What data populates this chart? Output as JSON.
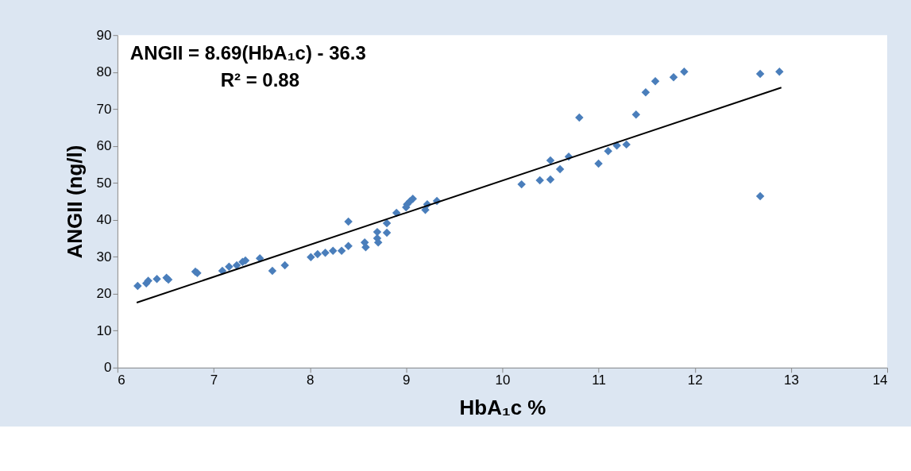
{
  "chart_data": {
    "type": "scatter",
    "xlabel": "HbA₁c %",
    "ylabel": "ANGII (ng/l)",
    "xlim": [
      6,
      14
    ],
    "xticks": [
      6,
      7,
      8,
      9,
      10,
      11,
      12,
      13,
      14
    ],
    "ylim": [
      0,
      90
    ],
    "yticks": [
      0,
      10,
      20,
      30,
      40,
      50,
      60,
      70,
      80,
      90
    ],
    "grid": false,
    "marker": "diamond",
    "annotations": [
      "ANGII = 8.69(HbA₁c) - 36.3",
      "R² = 0.88"
    ],
    "series": [
      {
        "color": "#4a7ebb",
        "x": [
          6.21,
          6.3,
          6.32,
          6.41,
          6.51,
          6.53,
          6.81,
          6.83,
          7.09,
          7.16,
          7.24,
          7.3,
          7.33,
          7.48,
          7.61,
          7.74,
          8.01,
          8.08,
          8.16,
          8.24,
          8.33,
          8.4,
          8.4,
          8.57,
          8.58,
          8.7,
          8.7,
          8.71,
          8.8,
          8.8,
          8.9,
          9.0,
          9.01,
          9.04,
          9.07,
          9.2,
          9.22,
          9.32,
          10.2,
          10.39,
          10.5,
          10.5,
          10.6,
          10.69,
          10.8,
          11.0,
          11.1,
          11.19,
          11.29,
          11.39,
          11.49,
          11.59,
          11.78,
          11.89,
          12.68,
          12.68,
          12.88
        ],
        "values": [
          22.1,
          22.8,
          23.5,
          24.0,
          24.3,
          23.8,
          26.0,
          25.6,
          26.2,
          27.3,
          27.7,
          28.6,
          29.0,
          29.6,
          26.2,
          27.7,
          29.9,
          30.7,
          31.1,
          31.6,
          31.6,
          32.9,
          39.5,
          33.9,
          32.6,
          36.7,
          35.0,
          33.9,
          36.5,
          39.1,
          41.9,
          43.4,
          44.2,
          45.0,
          45.7,
          42.7,
          44.2,
          45.1,
          49.6,
          50.7,
          56.1,
          50.9,
          53.7,
          57.1,
          67.7,
          55.2,
          58.6,
          60.1,
          60.4,
          68.5,
          74.5,
          77.5,
          78.6,
          80.1,
          79.5,
          46.4,
          80.1
        ]
      },
      {
        "type": "line",
        "marker": "none",
        "color": "#000000",
        "x": [
          6.2,
          12.9
        ],
        "values": [
          17.6,
          75.8
        ]
      }
    ]
  }
}
